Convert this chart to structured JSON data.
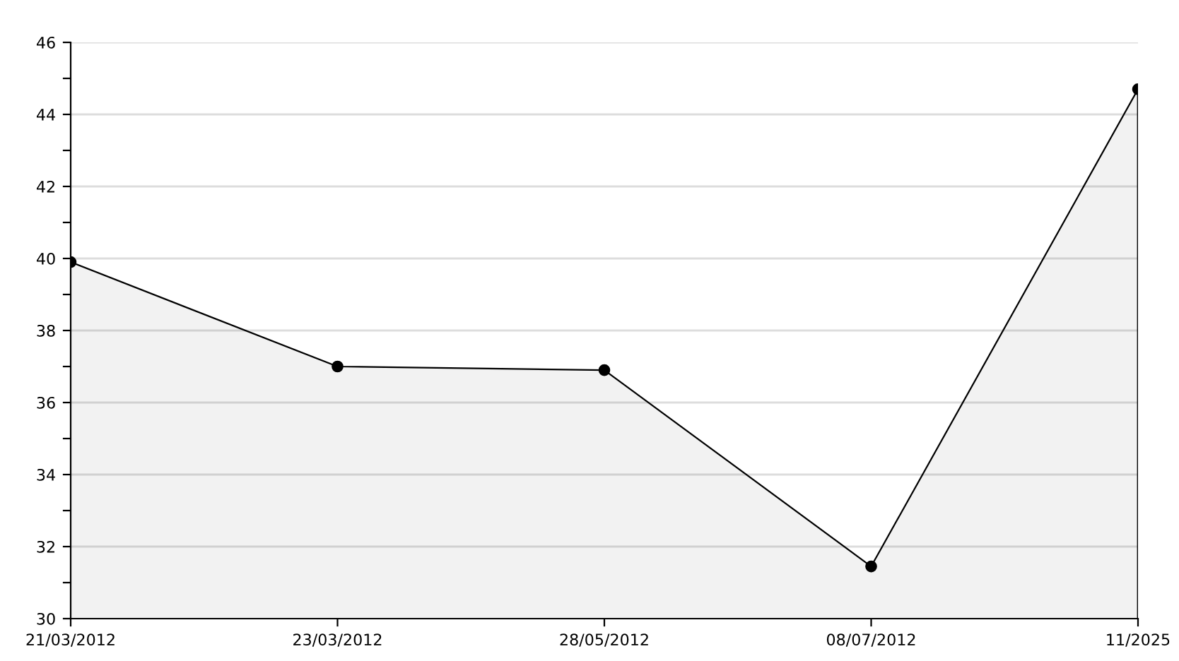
{
  "chart_data": {
    "type": "area",
    "categories": [
      "21/03/2012",
      "23/03/2012",
      "28/05/2012",
      "08/07/2012",
      "11/2025"
    ],
    "series": [
      {
        "color": "#000000",
        "values": [
          39.9,
          37.0,
          36.9,
          31.45,
          44.7
        ]
      }
    ],
    "ylim": [
      30,
      46
    ],
    "yticks": [
      30,
      {
        "value": 31,
        "label": null
      },
      32,
      {
        "value": 33,
        "label": null
      },
      34,
      {
        "value": 35,
        "label": null
      },
      36,
      {
        "value": 37,
        "label": null
      },
      38,
      {
        "value": 39,
        "label": null
      },
      40,
      {
        "value": 41,
        "label": null
      },
      42,
      {
        "value": 43,
        "label": null
      },
      44,
      {
        "value": 45,
        "label": null
      },
      46
    ],
    "grid": "y",
    "marker": "circle",
    "line_style": "solid",
    "legend": false
  }
}
